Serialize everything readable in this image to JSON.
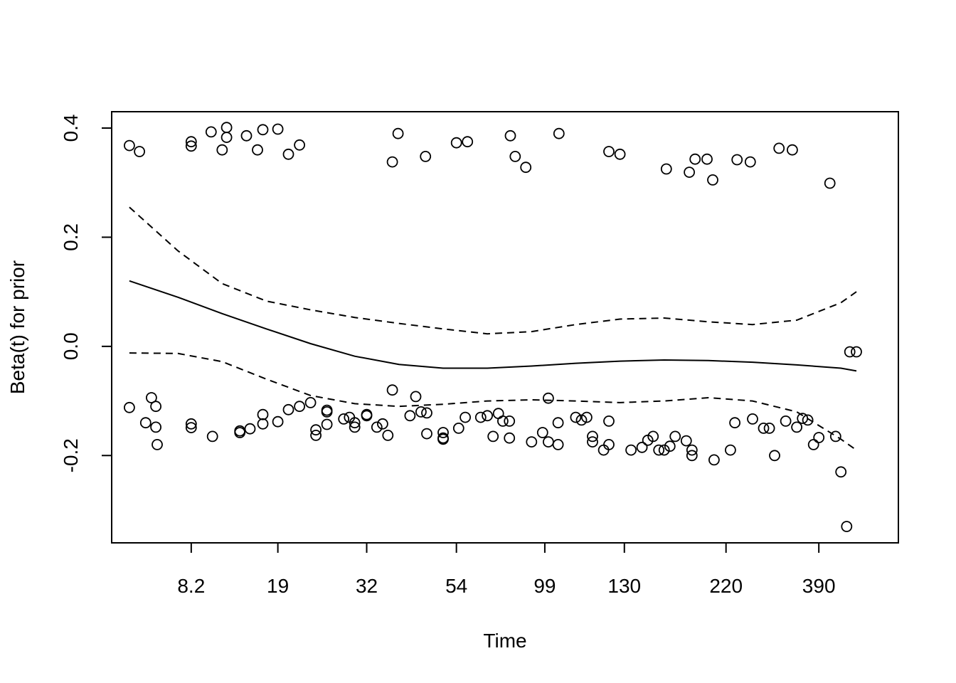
{
  "chart_data": {
    "type": "scatter",
    "title": "",
    "xlabel": "Time",
    "ylabel": "Beta(t) for prior",
    "x_ticks": [
      "8.2",
      "19",
      "32",
      "54",
      "99",
      "130",
      "220",
      "390"
    ],
    "x_tick_positions": [
      1.8,
      3.76,
      5.77,
      7.8,
      9.8,
      11.6,
      13.9,
      16
    ],
    "y_ticks": [
      -0.2,
      0.0,
      0.2,
      0.4
    ],
    "y_tick_labels": [
      "-0.2",
      "0.0",
      "0.2",
      "0.4"
    ],
    "xlim": [
      0,
      17.8
    ],
    "ylim": [
      -0.36,
      0.43
    ],
    "grid": false,
    "legend": "none",
    "points": [
      [
        0.4,
        0.368
      ],
      [
        0.63,
        0.357
      ],
      [
        1.8,
        0.375
      ],
      [
        1.8,
        0.367
      ],
      [
        2.25,
        0.393
      ],
      [
        2.5,
        0.36
      ],
      [
        2.6,
        0.401
      ],
      [
        2.6,
        0.383
      ],
      [
        3.05,
        0.386
      ],
      [
        3.3,
        0.36
      ],
      [
        3.42,
        0.397
      ],
      [
        3.76,
        0.398
      ],
      [
        4.0,
        0.352
      ],
      [
        4.25,
        0.369
      ],
      [
        6.35,
        0.338
      ],
      [
        6.48,
        0.39
      ],
      [
        7.1,
        0.348
      ],
      [
        7.8,
        0.373
      ],
      [
        8.05,
        0.375
      ],
      [
        9.02,
        0.386
      ],
      [
        9.13,
        0.348
      ],
      [
        9.37,
        0.328
      ],
      [
        10.12,
        0.39
      ],
      [
        11.25,
        0.357
      ],
      [
        11.5,
        0.352
      ],
      [
        12.55,
        0.325
      ],
      [
        13.07,
        0.319
      ],
      [
        13.2,
        0.343
      ],
      [
        13.47,
        0.343
      ],
      [
        13.6,
        0.305
      ],
      [
        14.15,
        0.342
      ],
      [
        14.45,
        0.338
      ],
      [
        15.1,
        0.363
      ],
      [
        15.4,
        0.36
      ],
      [
        16.25,
        0.299
      ],
      [
        0.4,
        -0.112
      ],
      [
        0.77,
        -0.14
      ],
      [
        0.9,
        -0.094
      ],
      [
        1.0,
        -0.148
      ],
      [
        1.0,
        -0.11
      ],
      [
        1.03,
        -0.18
      ],
      [
        1.8,
        -0.142
      ],
      [
        1.8,
        -0.149
      ],
      [
        2.28,
        -0.165
      ],
      [
        2.9,
        -0.155
      ],
      [
        2.9,
        -0.158
      ],
      [
        3.13,
        -0.151
      ],
      [
        3.42,
        -0.125
      ],
      [
        3.42,
        -0.142
      ],
      [
        3.76,
        -0.138
      ],
      [
        4.0,
        -0.116
      ],
      [
        4.25,
        -0.11
      ],
      [
        4.5,
        -0.103
      ],
      [
        4.62,
        -0.153
      ],
      [
        4.62,
        -0.163
      ],
      [
        4.87,
        -0.117
      ],
      [
        4.87,
        -0.12
      ],
      [
        4.87,
        -0.143
      ],
      [
        5.25,
        -0.133
      ],
      [
        5.38,
        -0.13
      ],
      [
        5.5,
        -0.14
      ],
      [
        5.5,
        -0.148
      ],
      [
        5.77,
        -0.125
      ],
      [
        5.77,
        -0.127
      ],
      [
        6.0,
        -0.148
      ],
      [
        6.13,
        -0.142
      ],
      [
        6.25,
        -0.163
      ],
      [
        6.35,
        -0.08
      ],
      [
        6.75,
        -0.127
      ],
      [
        6.88,
        -0.092
      ],
      [
        7.0,
        -0.12
      ],
      [
        7.13,
        -0.122
      ],
      [
        7.13,
        -0.16
      ],
      [
        7.5,
        -0.158
      ],
      [
        7.5,
        -0.168
      ],
      [
        7.5,
        -0.17
      ],
      [
        7.85,
        -0.15
      ],
      [
        8.0,
        -0.13
      ],
      [
        8.35,
        -0.13
      ],
      [
        8.5,
        -0.127
      ],
      [
        8.63,
        -0.165
      ],
      [
        8.75,
        -0.123
      ],
      [
        8.85,
        -0.137
      ],
      [
        9.0,
        -0.137
      ],
      [
        9.0,
        -0.168
      ],
      [
        9.5,
        -0.175
      ],
      [
        9.75,
        -0.158
      ],
      [
        9.88,
        -0.095
      ],
      [
        9.88,
        -0.175
      ],
      [
        10.1,
        -0.18
      ],
      [
        10.1,
        -0.14
      ],
      [
        10.5,
        -0.13
      ],
      [
        10.63,
        -0.135
      ],
      [
        10.75,
        -0.13
      ],
      [
        10.88,
        -0.165
      ],
      [
        10.88,
        -0.175
      ],
      [
        11.13,
        -0.19
      ],
      [
        11.25,
        -0.18
      ],
      [
        11.25,
        -0.137
      ],
      [
        11.75,
        -0.19
      ],
      [
        12.0,
        -0.185
      ],
      [
        12.13,
        -0.172
      ],
      [
        12.25,
        -0.165
      ],
      [
        12.38,
        -0.19
      ],
      [
        12.5,
        -0.19
      ],
      [
        12.63,
        -0.183
      ],
      [
        12.75,
        -0.165
      ],
      [
        13.0,
        -0.173
      ],
      [
        13.13,
        -0.19
      ],
      [
        13.13,
        -0.2
      ],
      [
        13.63,
        -0.208
      ],
      [
        14.0,
        -0.19
      ],
      [
        14.1,
        -0.14
      ],
      [
        14.5,
        -0.133
      ],
      [
        14.75,
        -0.15
      ],
      [
        14.88,
        -0.15
      ],
      [
        15.0,
        -0.2
      ],
      [
        15.25,
        -0.137
      ],
      [
        15.5,
        -0.148
      ],
      [
        15.63,
        -0.132
      ],
      [
        15.75,
        -0.135
      ],
      [
        15.88,
        -0.18
      ],
      [
        16.0,
        -0.167
      ],
      [
        16.38,
        -0.165
      ],
      [
        16.5,
        -0.23
      ],
      [
        16.63,
        -0.33
      ],
      [
        16.7,
        -0.01
      ],
      [
        16.85,
        -0.01
      ]
    ],
    "series": [
      {
        "style": "solid",
        "x": [
          0.4,
          1.5,
          2.5,
          3.5,
          4.5,
          5.5,
          6.5,
          7.5,
          8.5,
          9.5,
          10.5,
          11.5,
          12.5,
          13.5,
          14.5,
          15.5,
          16.5,
          16.85
        ],
        "y": [
          0.12,
          0.09,
          0.06,
          0.032,
          0.005,
          -0.018,
          -0.033,
          -0.04,
          -0.04,
          -0.036,
          -0.031,
          -0.027,
          -0.025,
          -0.026,
          -0.029,
          -0.034,
          -0.04,
          -0.045
        ]
      },
      {
        "style": "dashed",
        "x": [
          0.4,
          1.5,
          2.5,
          3.5,
          4.5,
          5.5,
          6.5,
          7.5,
          8.5,
          9.5,
          10.5,
          11.5,
          12.5,
          13.5,
          14.5,
          15.5,
          16.5,
          16.85
        ],
        "y": [
          0.255,
          0.175,
          0.115,
          0.083,
          0.067,
          0.053,
          0.042,
          0.032,
          0.023,
          0.027,
          0.04,
          0.05,
          0.052,
          0.045,
          0.04,
          0.048,
          0.08,
          0.1
        ]
      },
      {
        "style": "dashed",
        "x": [
          0.4,
          1.5,
          2.5,
          3.5,
          4.5,
          5.5,
          6.5,
          7.5,
          8.5,
          9.5,
          10.5,
          11.5,
          12.5,
          13.5,
          14.5,
          15.5,
          16.5,
          16.85
        ],
        "y": [
          -0.012,
          -0.013,
          -0.028,
          -0.06,
          -0.09,
          -0.105,
          -0.11,
          -0.106,
          -0.1,
          -0.098,
          -0.1,
          -0.103,
          -0.1,
          -0.094,
          -0.1,
          -0.12,
          -0.17,
          -0.19
        ]
      }
    ]
  }
}
